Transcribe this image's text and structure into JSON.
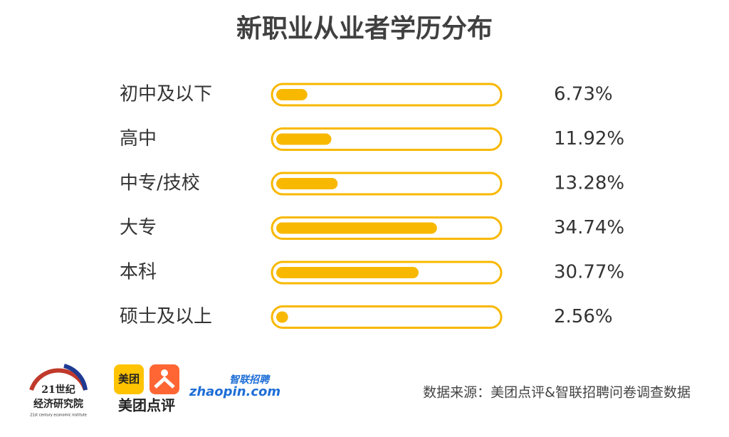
{
  "chart_data": {
    "type": "bar",
    "title": "新职业从业者学历分布",
    "categories": [
      "初中及以下",
      "高中",
      "中专/技校",
      "大专",
      "本科",
      "硕士及以上"
    ],
    "values": [
      6.73,
      11.92,
      13.28,
      34.74,
      30.77,
      2.56
    ],
    "value_labels": [
      "6.73%",
      "11.92%",
      "13.28%",
      "34.74%",
      "30.77%",
      "2.56%"
    ],
    "color": "#f8b800",
    "source": "数据来源：美团点评&智联招聘问卷调查数据"
  },
  "logos": {
    "institute": [
      "21世纪",
      "经济研究院",
      "21st century economic institute"
    ],
    "meituan": [
      "美团",
      "美团点评"
    ],
    "zhaopin": [
      "智联招聘",
      "zhaopin.com"
    ]
  }
}
